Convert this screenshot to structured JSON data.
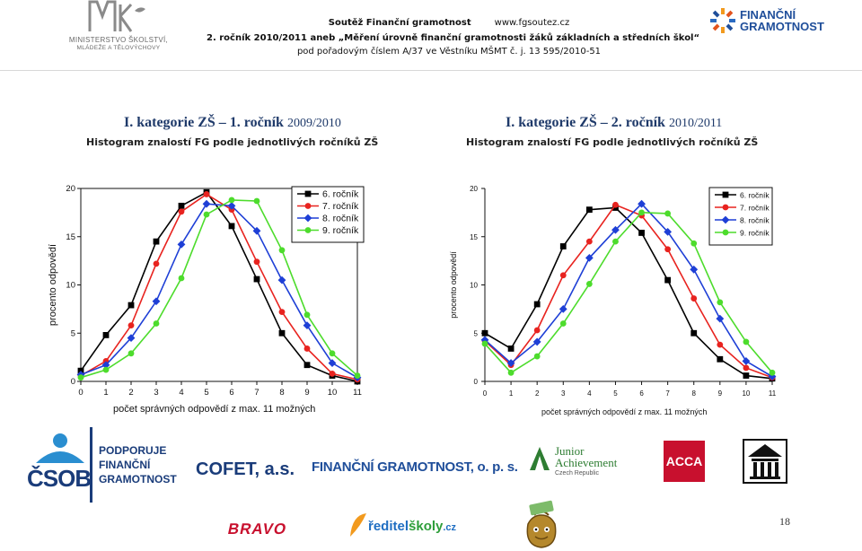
{
  "header": {
    "ministry_name_line1": "MINISTERSTVO ŠKOLSTVÍ,",
    "ministry_name_line2": "MLÁDEŽE A TĚLOVÝCHOVY",
    "line1_title": "Soutěž Finanční gramotnost",
    "line1_site": "www.fgsoutez.cz",
    "line2": "2. ročník 2010/2011 aneb „Měření úrovně finanční gramotnosti žáků základních a středních škol“",
    "line3": "pod pořadovým číslem A/37 ve Věstníku MŠMT č. j. 13 595/2010-51",
    "fg_logo_line1": "FINANČNÍ",
    "fg_logo_line2": "GRAMOTNOST"
  },
  "titles": {
    "left_main": "I. kategorie ZŠ – 1. ročník",
    "left_year": "2009/2010",
    "left_sub": "Histogram znalostí FG podle jednotlivých ročníků ZŠ",
    "right_main": "I. kategorie ZŠ – 2. ročník",
    "right_year": "2010/2011",
    "right_sub": "Histogram znalostí FG podle jednotlivých ročníků ZŠ"
  },
  "chart_data": [
    {
      "type": "line",
      "xlabel": "počet správných odpovědí z max. 11 možných",
      "ylabel": "procento odpovědí",
      "x": [
        0,
        1,
        2,
        3,
        4,
        5,
        6,
        7,
        8,
        9,
        10,
        11
      ],
      "xlim": [
        0,
        11
      ],
      "ylim": [
        0,
        20
      ],
      "yticks": [
        0,
        5,
        10,
        15,
        20
      ],
      "grid": false,
      "legend": "top-right",
      "series": [
        {
          "name": "6. ročník",
          "color": "#000000",
          "marker": "square",
          "values": [
            1.1,
            4.8,
            7.9,
            14.5,
            18.2,
            19.6,
            16.1,
            10.6,
            5.0,
            1.7,
            0.6,
            0.0
          ]
        },
        {
          "name": "7. ročník",
          "color": "#e8231f",
          "marker": "circle",
          "values": [
            0.6,
            2.1,
            5.8,
            12.2,
            17.6,
            19.4,
            17.8,
            12.4,
            7.2,
            3.4,
            0.8,
            0.2
          ]
        },
        {
          "name": "8. ročník",
          "color": "#1e3fd6",
          "marker": "diamond",
          "values": [
            0.7,
            1.7,
            4.5,
            8.3,
            14.2,
            18.4,
            18.2,
            15.6,
            10.5,
            5.8,
            1.9,
            0.4
          ]
        },
        {
          "name": "9. ročník",
          "color": "#4ddc2c",
          "marker": "circle",
          "values": [
            0.4,
            1.2,
            2.9,
            6.0,
            10.7,
            17.3,
            18.8,
            18.7,
            13.6,
            6.9,
            2.9,
            0.6
          ]
        }
      ]
    },
    {
      "type": "line",
      "xlabel": "počet správných odpovědí z max. 11 možných",
      "ylabel": "procento odpovědí",
      "x": [
        0,
        1,
        2,
        3,
        4,
        5,
        6,
        7,
        8,
        9,
        10,
        11
      ],
      "xlim": [
        0,
        11
      ],
      "ylim": [
        0,
        20
      ],
      "yticks": [
        0,
        5,
        10,
        15,
        20
      ],
      "grid": false,
      "legend": "top-right",
      "series": [
        {
          "name": "6. ročník",
          "color": "#000000",
          "marker": "square",
          "values": [
            5.0,
            3.4,
            8.0,
            14.0,
            17.8,
            18.0,
            15.4,
            10.5,
            5.0,
            2.3,
            0.6,
            0.3
          ]
        },
        {
          "name": "7. ročník",
          "color": "#e8231f",
          "marker": "circle",
          "values": [
            4.2,
            1.7,
            5.3,
            11.0,
            14.5,
            18.3,
            17.2,
            13.7,
            8.6,
            3.8,
            1.4,
            0.4
          ]
        },
        {
          "name": "8. ročník",
          "color": "#1e3fd6",
          "marker": "diamond",
          "values": [
            4.3,
            1.9,
            4.1,
            7.5,
            12.8,
            15.7,
            18.4,
            15.5,
            11.6,
            6.5,
            2.1,
            0.5
          ]
        },
        {
          "name": "9. ročník",
          "color": "#4ddc2c",
          "marker": "circle",
          "values": [
            3.9,
            0.9,
            2.6,
            6.0,
            10.1,
            14.5,
            17.5,
            17.4,
            14.3,
            8.2,
            4.1,
            0.9
          ]
        }
      ]
    }
  ],
  "footer": {
    "csob": "ČSOB",
    "csob_slogan_1": "PODPORUJE",
    "csob_slogan_2": "FINANČNÍ",
    "csob_slogan_3": "GRAMOTNOST",
    "cofet": "COFET, a.s.",
    "fg_ops": "FINANČNÍ GRAMOTNOST, o. p. s.",
    "ja_1": "Junior",
    "ja_2": "Achievement",
    "ja_3": "Czech Republic",
    "acca": "ACCA",
    "bravo": "BRAVO",
    "reditel_1": "ředitel",
    "reditel_2": "školy",
    "reditel_3": ".cz"
  },
  "page_number": "18"
}
